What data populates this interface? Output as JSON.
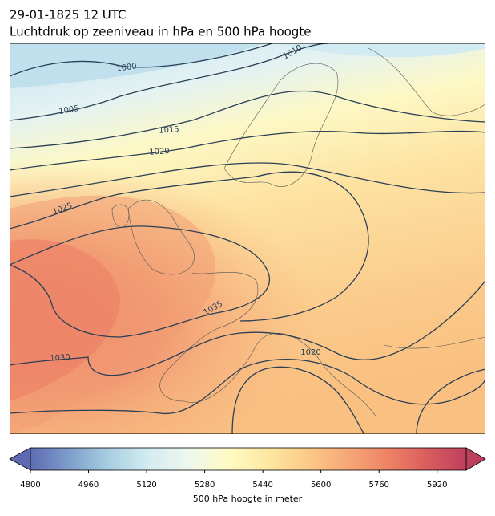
{
  "header": {
    "date": "29-01-1825 12 UTC",
    "title": "Luchtdruk op zeeniveau in hPa en 500 hPa hoogte"
  },
  "map": {
    "contour_labels": [
      {
        "text": "1000"
      },
      {
        "text": "1005"
      },
      {
        "text": "1010"
      },
      {
        "text": "1015"
      },
      {
        "text": "1020"
      },
      {
        "text": "1025"
      },
      {
        "text": "1030"
      },
      {
        "text": "1035"
      },
      {
        "text": "1020"
      }
    ]
  },
  "colorbar": {
    "label": "500 hPa hoogte in meter",
    "lim": [
      4800,
      6000
    ],
    "ticks": [
      4800,
      4960,
      5120,
      5280,
      5440,
      5600,
      5760,
      5920
    ],
    "colors": [
      "#5e6bb3",
      "#7e9fcb",
      "#a9cfe2",
      "#d4ecf2",
      "#eef7ef",
      "#fefbc3",
      "#fde7a2",
      "#fbca87",
      "#f6a877",
      "#ee8466",
      "#db5d5e",
      "#bd3f5e"
    ]
  }
}
